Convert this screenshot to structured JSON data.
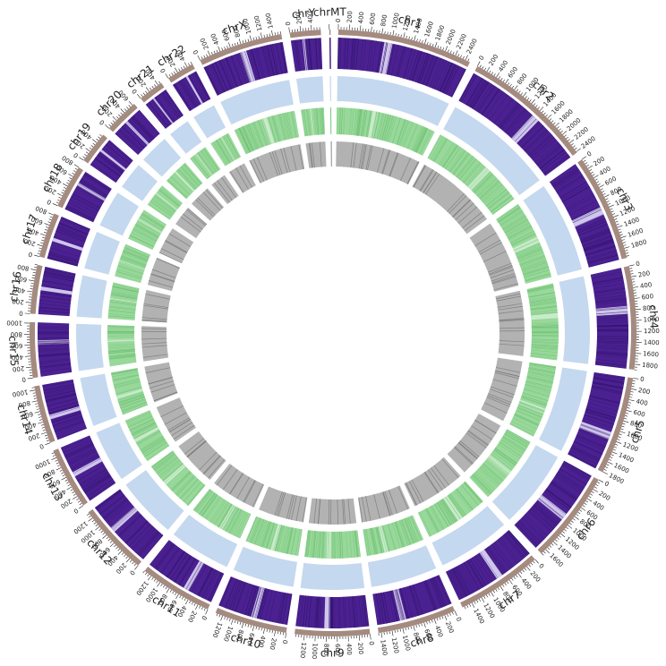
{
  "colors": {
    "ideogram": "#a58a80",
    "track1": "#4b2191",
    "track1_light": "#cfc6ec",
    "track2": "#c4d8ef",
    "track3": "#98d89a",
    "track3_light": "#c8ebc9",
    "track4": "#b2b2b2",
    "track4_dark": "#6e6e6e"
  },
  "tick_unit": "Mb",
  "chromosomes": [
    {
      "name": "chr1",
      "length": 2490
    },
    {
      "name": "chr2",
      "length": 2420
    },
    {
      "name": "chr3",
      "length": 1980
    },
    {
      "name": "chr4",
      "length": 1900
    },
    {
      "name": "chr5",
      "length": 1810
    },
    {
      "name": "chr6",
      "length": 1710
    },
    {
      "name": "chr7",
      "length": 1590
    },
    {
      "name": "chr8",
      "length": 1450
    },
    {
      "name": "chr9",
      "length": 1380
    },
    {
      "name": "chr10",
      "length": 1340
    },
    {
      "name": "chr11",
      "length": 1350
    },
    {
      "name": "chr12",
      "length": 1330
    },
    {
      "name": "chr13",
      "length": 1140
    },
    {
      "name": "chr14",
      "length": 1070
    },
    {
      "name": "chr15",
      "length": 1020
    },
    {
      "name": "chr16",
      "length": 900
    },
    {
      "name": "chr17",
      "length": 830
    },
    {
      "name": "chr18",
      "length": 800
    },
    {
      "name": "chr19",
      "length": 590
    },
    {
      "name": "chr20",
      "length": 640
    },
    {
      "name": "chr21",
      "length": 470
    },
    {
      "name": "chr22",
      "length": 510
    },
    {
      "name": "chrX",
      "length": 1560
    },
    {
      "name": "chrY",
      "length": 570
    },
    {
      "name": "chrMT",
      "length": 10
    }
  ]
}
